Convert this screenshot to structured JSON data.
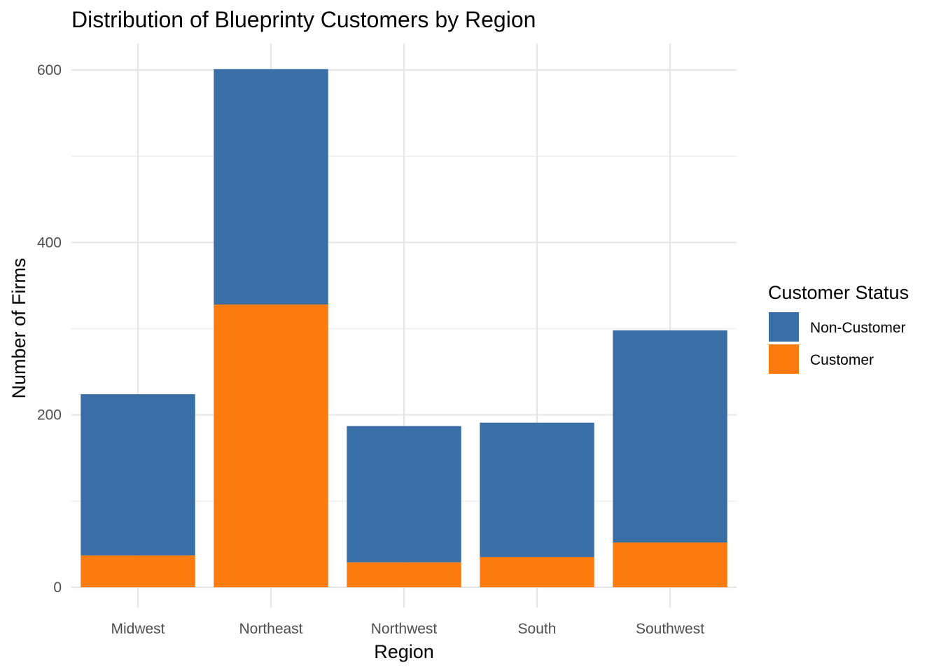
{
  "chart_data": {
    "type": "bar",
    "stacked": true,
    "title": "Distribution of Blueprinty Customers by Region",
    "xlabel": "Region",
    "ylabel": "Number of Firms",
    "categories": [
      "Midwest",
      "Northeast",
      "Northwest",
      "South",
      "Southwest"
    ],
    "series": [
      {
        "name": "Customer",
        "color": "#FC7A0E",
        "values": [
          37,
          328,
          29,
          35,
          52
        ]
      },
      {
        "name": "Non-Customer",
        "color": "#3A6EA6",
        "values": [
          187,
          273,
          158,
          156,
          246
        ]
      }
    ],
    "ylim": [
      0,
      600
    ],
    "yticks": [
      0,
      200,
      400,
      600
    ],
    "grid": true,
    "legend": {
      "title": "Customer Status",
      "placement": "right",
      "entries": [
        "Non-Customer",
        "Customer"
      ]
    }
  }
}
